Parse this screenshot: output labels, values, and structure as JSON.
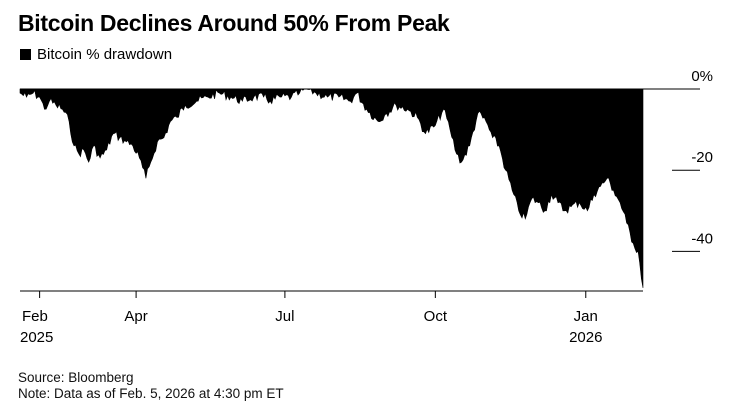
{
  "header": {
    "title": "Bitcoin Declines Around 50% From Peak",
    "legend_label": "Bitcoin % drawdown"
  },
  "footer": {
    "source": "Source: Bloomberg",
    "note": "Note: Data as of Feb. 5, 2026 at 4:30 pm ET"
  },
  "colors": {
    "fill": "#000000",
    "axis": "#000000",
    "background": "#ffffff"
  },
  "chart_data": {
    "type": "area",
    "title": "Bitcoin Declines Around 50% From Peak",
    "series": [
      {
        "name": "Bitcoin % drawdown",
        "x": [
          "2025-01-20",
          "2025-01-24",
          "2025-01-28",
          "2025-02-01",
          "2025-02-04",
          "2025-02-07",
          "2025-02-11",
          "2025-02-15",
          "2025-02-19",
          "2025-02-22",
          "2025-02-25",
          "2025-02-28",
          "2025-03-03",
          "2025-03-06",
          "2025-03-10",
          "2025-03-14",
          "2025-03-18",
          "2025-03-22",
          "2025-03-26",
          "2025-03-30",
          "2025-04-03",
          "2025-04-07",
          "2025-04-10",
          "2025-04-14",
          "2025-04-18",
          "2025-04-22",
          "2025-04-26",
          "2025-05-01",
          "2025-05-08",
          "2025-05-15",
          "2025-05-22",
          "2025-05-29",
          "2025-06-05",
          "2025-06-12",
          "2025-06-18",
          "2025-06-22",
          "2025-06-28",
          "2025-07-05",
          "2025-07-10",
          "2025-07-14",
          "2025-07-20",
          "2025-07-27",
          "2025-08-03",
          "2025-08-10",
          "2025-08-14",
          "2025-08-20",
          "2025-08-27",
          "2025-09-01",
          "2025-09-07",
          "2025-09-14",
          "2025-09-20",
          "2025-09-25",
          "2025-10-01",
          "2025-10-06",
          "2025-10-10",
          "2025-10-14",
          "2025-10-17",
          "2025-10-22",
          "2025-10-27",
          "2025-11-01",
          "2025-11-05",
          "2025-11-09",
          "2025-11-13",
          "2025-11-17",
          "2025-11-21",
          "2025-11-25",
          "2025-11-29",
          "2025-12-03",
          "2025-12-07",
          "2025-12-11",
          "2025-12-15",
          "2025-12-19",
          "2025-12-23",
          "2025-12-28",
          "2026-01-02",
          "2026-01-06",
          "2026-01-10",
          "2026-01-14",
          "2026-01-18",
          "2026-01-22",
          "2026-01-26",
          "2026-01-30",
          "2026-02-02",
          "2026-02-05"
        ],
        "values": [
          -1,
          -2,
          -1,
          -2,
          -5,
          -3,
          -4,
          -5,
          -8,
          -14,
          -16,
          -15,
          -18,
          -14,
          -17,
          -15,
          -11,
          -12,
          -13,
          -14,
          -17,
          -22,
          -18,
          -13,
          -12,
          -8,
          -7,
          -4,
          -3,
          -2,
          -1,
          -2,
          -3,
          -2,
          -2,
          -3,
          -2,
          -2,
          -1,
          0,
          -1,
          -2,
          -2,
          -3,
          -1,
          -5,
          -8,
          -6,
          -4,
          -5,
          -7,
          -11,
          -9,
          -5,
          -10,
          -16,
          -18,
          -14,
          -6,
          -8,
          -12,
          -14,
          -20,
          -25,
          -30,
          -32,
          -27,
          -28,
          -30,
          -26,
          -28,
          -30,
          -29,
          -28,
          -30,
          -26,
          -24,
          -22,
          -25,
          -28,
          -33,
          -38,
          -40,
          -49
        ]
      }
    ],
    "x_ticks": [
      {
        "date": "2025-02-01",
        "label": "Feb",
        "sublabel": "2025"
      },
      {
        "date": "2025-04-01",
        "label": "Apr",
        "sublabel": ""
      },
      {
        "date": "2025-07-01",
        "label": "Jul",
        "sublabel": ""
      },
      {
        "date": "2025-10-01",
        "label": "Oct",
        "sublabel": ""
      },
      {
        "date": "2026-01-01",
        "label": "Jan",
        "sublabel": "2026"
      }
    ],
    "y_ticks": [
      {
        "value": 0,
        "label": "0%"
      },
      {
        "value": -20,
        "label": "-20"
      },
      {
        "value": -40,
        "label": "-40"
      }
    ],
    "xlim": [
      "2025-01-20",
      "2026-02-05"
    ],
    "ylim": [
      -49,
      0
    ],
    "xlabel": "",
    "ylabel": "",
    "grid": false,
    "legend_position": "top-left"
  }
}
